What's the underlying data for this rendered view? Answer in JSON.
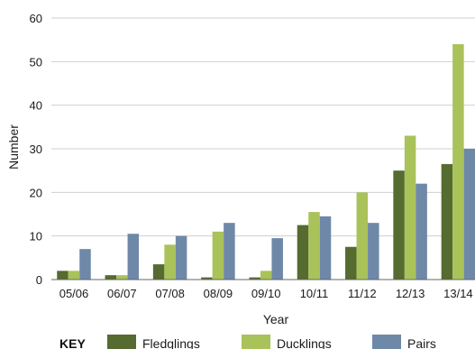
{
  "chart_data": {
    "type": "bar",
    "title": "",
    "xlabel": "Year",
    "ylabel": "Number",
    "ylim": [
      0,
      60
    ],
    "yticks": [
      0,
      10,
      20,
      30,
      40,
      50,
      60
    ],
    "grid": true,
    "legend_title": "KEY",
    "legend_position": "bottom",
    "categories": [
      "05/06",
      "06/07",
      "07/08",
      "08/09",
      "09/10",
      "10/11",
      "11/12",
      "12/13",
      "13/14"
    ],
    "series": [
      {
        "name": "Fledglings",
        "color": "#556b2f",
        "values": [
          2,
          1,
          3.5,
          0.5,
          0.5,
          12.5,
          7.5,
          25,
          26.5
        ]
      },
      {
        "name": "Ducklings",
        "color": "#a9c25a",
        "values": [
          2,
          1,
          8,
          11,
          2,
          15.5,
          20,
          33,
          54
        ]
      },
      {
        "name": "Pairs",
        "color": "#6e88a8",
        "values": [
          7,
          10.5,
          10,
          13,
          9.5,
          14.5,
          13,
          22,
          30
        ]
      }
    ]
  }
}
